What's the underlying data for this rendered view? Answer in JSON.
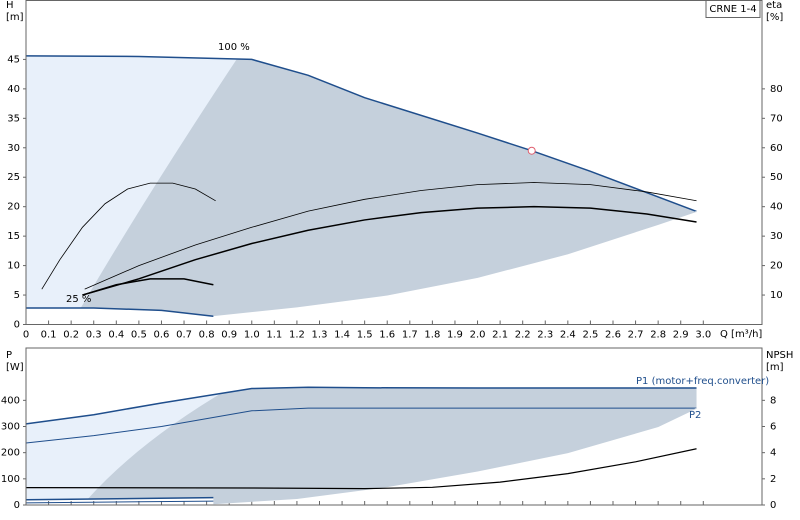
{
  "chart_data": [
    {
      "type": "line",
      "title": "CRNE 1-4",
      "y_label": "H",
      "y_unit": "[m]",
      "y2_label": "eta",
      "y2_unit": "[%]",
      "x_label": "Q [m³/h]",
      "annotations": [
        "100 %",
        "25 %"
      ],
      "xlim": [
        0,
        3.26
      ],
      "ylim": [
        0,
        55
      ],
      "y2lim": [
        0,
        110
      ],
      "xticks": [
        0,
        0.1,
        0.2,
        0.3,
        0.4,
        0.5,
        0.6,
        0.7,
        0.8,
        0.9,
        {
          "value": 1.0,
          "label": "1.0"
        },
        1.1,
        1.2,
        1.3,
        1.4,
        1.5,
        1.6,
        1.7,
        1.8,
        1.9,
        {
          "value": 2.0,
          "label": "2.0"
        },
        2.1,
        2.2,
        2.3,
        2.4,
        2.5,
        2.6,
        2.7,
        2.8,
        2.9,
        {
          "value": 3.0,
          "label": "3.0"
        }
      ],
      "yticks": [
        0,
        5,
        10,
        15,
        20,
        25,
        30,
        35,
        40,
        45
      ],
      "y2ticks": [
        10,
        20,
        30,
        40,
        50,
        60,
        70,
        80
      ],
      "operating_point": {
        "x": 2.24,
        "y": 29.5,
        "color": "#e06070"
      },
      "series": [
        {
          "color": "#1f4e8c",
          "line_width": 1.5,
          "x": [
            0,
            0.5,
            1.0,
            1.25,
            1.5,
            2.0,
            2.24,
            2.5,
            2.97
          ],
          "values": [
            45.6,
            45.5,
            45,
            42.3,
            38.5,
            32.5,
            29.5,
            26,
            19.2
          ]
        },
        {
          "color": "#1f4e8c",
          "line_width": 1.5,
          "x": [
            0,
            0.3,
            0.6,
            0.83
          ],
          "values": [
            2.8,
            2.8,
            2.4,
            1.4
          ]
        },
        {
          "color": "#c5d0dc",
          "line_width": 1,
          "x": [
            0.83,
            1.2,
            1.6,
            2.0,
            2.4,
            2.8,
            2.97
          ],
          "values": [
            1.5,
            3,
            5,
            8,
            12,
            17,
            19.2
          ]
        },
        {
          "color": "#000000",
          "line_width": 0.8,
          "axis": "y2",
          "x": [
            0.07,
            0.15,
            0.25,
            0.35,
            0.45,
            0.55,
            0.65,
            0.75,
            0.84
          ],
          "values": [
            12,
            22,
            33,
            41,
            46,
            48,
            48,
            46,
            42
          ]
        },
        {
          "color": "#000000",
          "line_width": 0.8,
          "axis": "y2",
          "x": [
            0.26,
            0.5,
            0.75,
            1.0,
            1.25,
            1.5,
            1.75,
            2.0,
            2.25,
            2.5,
            2.75,
            2.97
          ],
          "values": [
            12,
            20,
            27,
            33,
            38.5,
            42.5,
            45.5,
            47.5,
            48.2,
            47.5,
            45,
            42
          ]
        },
        {
          "color": "#000000",
          "line_width": 1.5,
          "axis": "y2",
          "x": [
            0.25,
            0.5,
            0.75,
            1.0,
            1.25,
            1.5,
            1.75,
            2.0,
            2.25,
            2.5,
            2.75,
            2.97
          ],
          "values": [
            10,
            15.5,
            22,
            27.5,
            32,
            35.5,
            38,
            39.5,
            40,
            39.5,
            37.5,
            34.8
          ]
        },
        {
          "color": "#000000",
          "line_width": 1.5,
          "axis": "y2",
          "x": [
            0.25,
            0.4,
            0.55,
            0.7,
            0.83
          ],
          "values": [
            10,
            13.5,
            15.5,
            15.5,
            13.5
          ]
        }
      ]
    },
    {
      "type": "line",
      "y_label": "P",
      "y_unit": "[W]",
      "y2_label": "NPSH",
      "y2_unit": "[m]",
      "annotations": [
        "P1 (motor+freq.converter)",
        "P2"
      ],
      "xlim": [
        0,
        3.26
      ],
      "ylim": [
        0,
        600
      ],
      "y2lim": [
        0,
        12
      ],
      "yticks": [
        0,
        100,
        200,
        300,
        400
      ],
      "y2ticks": [
        0,
        2,
        4,
        6,
        8
      ],
      "series": [
        {
          "color": "#1f4e8c",
          "line_width": 1.5,
          "x": [
            0,
            0.3,
            0.6,
            1.0,
            1.25,
            1.5,
            2.0,
            2.5,
            2.97
          ],
          "values": [
            310,
            345,
            390,
            445,
            450,
            448,
            447,
            447,
            447
          ]
        },
        {
          "color": "#1f4e8c",
          "line_width": 1.5,
          "x": [
            0,
            0.83
          ],
          "values": [
            20,
            28
          ]
        },
        {
          "color": "#1f4e8c",
          "line_width": 1,
          "x": [
            0,
            0.3,
            0.6,
            1.0,
            1.25,
            2.0,
            2.97
          ],
          "values": [
            237,
            265,
            300,
            360,
            370,
            370,
            370
          ]
        },
        {
          "color": "#1f4e8c",
          "line_width": 1,
          "x": [
            0,
            0.83
          ],
          "values": [
            8,
            15
          ]
        },
        {
          "color": "#c5d0dc",
          "line_width": 1,
          "x": [
            0.83,
            1.2,
            1.6,
            2.0,
            2.4,
            2.8,
            2.97
          ],
          "values": [
            5,
            25,
            70,
            130,
            200,
            300,
            370
          ]
        },
        {
          "color": "#000000",
          "line_width": 1.2,
          "axis": "y2",
          "x": [
            0,
            1.0,
            1.5,
            1.8,
            2.1,
            2.4,
            2.7,
            2.97
          ],
          "values": [
            1.33,
            1.3,
            1.25,
            1.35,
            1.75,
            2.4,
            3.3,
            4.3
          ]
        }
      ]
    }
  ]
}
